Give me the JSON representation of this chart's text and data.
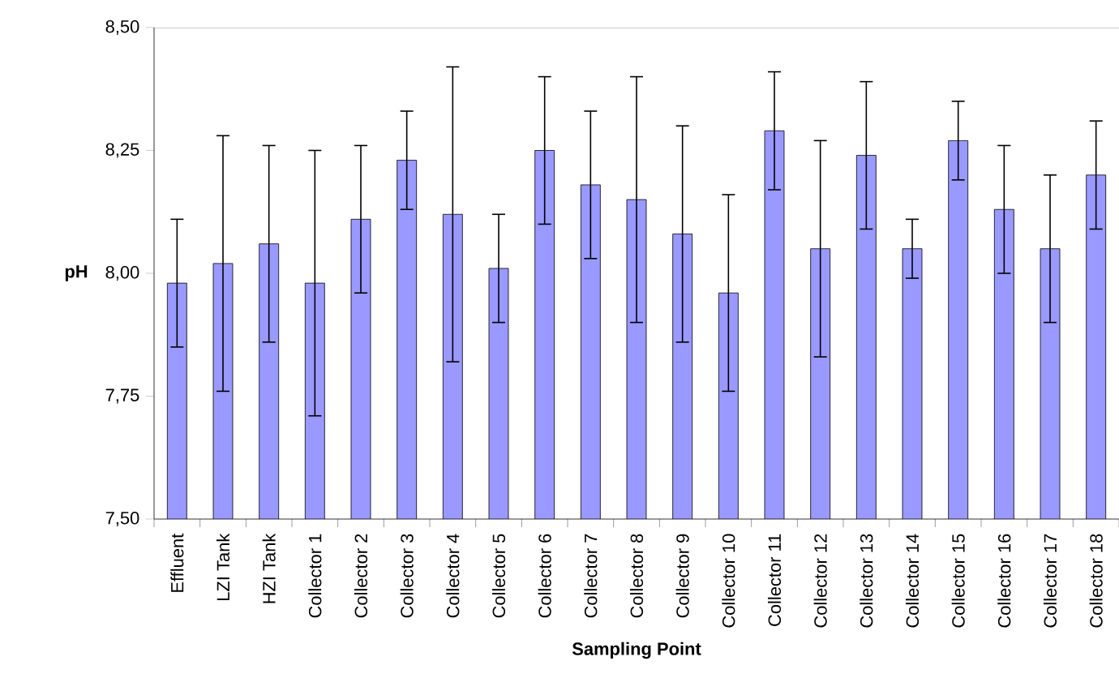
{
  "chart_data": {
    "type": "bar",
    "xlabel": "Sampling Point",
    "ylabel": "pH",
    "color": "#9999ff",
    "categories": [
      "Effluent",
      "LZI Tank",
      "HZI Tank",
      "Collector 1",
      "Collector 2",
      "Collector 3",
      "Collector 4",
      "Collector 5",
      "Collector 6",
      "Collector 7",
      "Collector 8",
      "Collector 9",
      "Collector 10",
      "Collector 11",
      "Collector 12",
      "Collector 13",
      "Collector 14",
      "Collector 15",
      "Collector 16",
      "Collector 17",
      "Collector 18"
    ],
    "values": [
      7.98,
      8.02,
      8.06,
      7.98,
      8.11,
      8.23,
      8.12,
      8.01,
      8.25,
      8.18,
      8.15,
      8.08,
      7.96,
      8.29,
      8.05,
      8.24,
      8.05,
      8.27,
      8.13,
      8.05,
      8.2
    ],
    "errors": [
      0.13,
      0.26,
      0.2,
      0.27,
      0.15,
      0.1,
      0.3,
      0.11,
      0.15,
      0.15,
      0.25,
      0.22,
      0.2,
      0.12,
      0.22,
      0.15,
      0.06,
      0.08,
      0.13,
      0.15,
      0.11
    ],
    "ylim": [
      7.5,
      8.5
    ],
    "yticks": [
      {
        "value": 7.5,
        "label": "7,50"
      },
      {
        "value": 7.75,
        "label": "7,75"
      },
      {
        "value": 8.0,
        "label": "8,00"
      },
      {
        "value": 8.25,
        "label": "8,25"
      },
      {
        "value": 8.5,
        "label": "8,50"
      }
    ]
  }
}
